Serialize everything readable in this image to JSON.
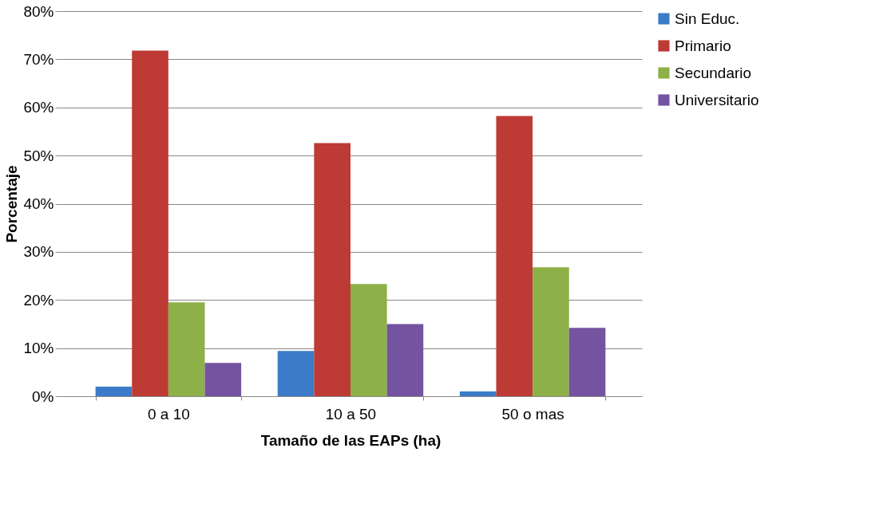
{
  "chart_data": {
    "type": "bar",
    "xlabel": "Tamaño de las EAPs (ha)",
    "ylabel": "Porcentaje",
    "categories": [
      "0 a 10",
      "10 a 50",
      "50 o mas"
    ],
    "series": [
      {
        "name": "Sin Educ.",
        "color": "#3c7bc8",
        "values": [
          2.0,
          9.4,
          1.0
        ]
      },
      {
        "name": "Primario",
        "color": "#be3a34",
        "values": [
          71.8,
          52.6,
          58.2
        ]
      },
      {
        "name": "Secundario",
        "color": "#8db049",
        "values": [
          19.5,
          23.3,
          26.8
        ]
      },
      {
        "name": "Universitario",
        "color": "#7453a0",
        "values": [
          6.9,
          15.0,
          14.2
        ]
      }
    ],
    "ylim": [
      0,
      80
    ],
    "yticks": [
      {
        "value": 0,
        "label": "0%"
      },
      {
        "value": 10,
        "label": "10%"
      },
      {
        "value": 20,
        "label": "20%"
      },
      {
        "value": 30,
        "label": "30%"
      },
      {
        "value": 40,
        "label": "40%"
      },
      {
        "value": 50,
        "label": "50%"
      },
      {
        "value": 60,
        "label": "60%"
      },
      {
        "value": 70,
        "label": "70%"
      },
      {
        "value": 80,
        "label": "80%"
      }
    ],
    "grid": "y",
    "legend": "right"
  }
}
